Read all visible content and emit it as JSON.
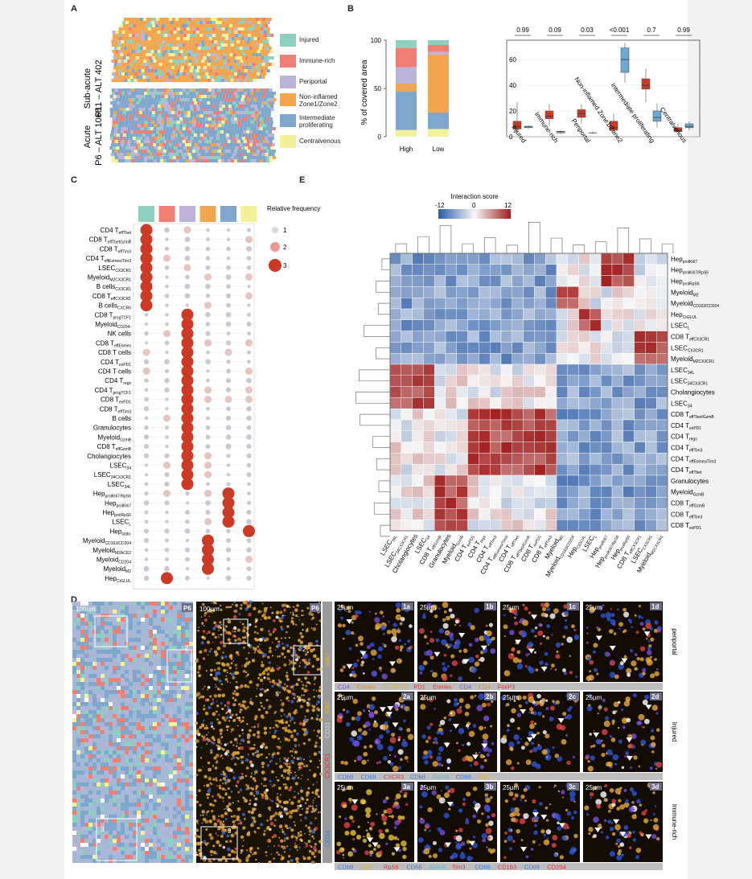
{
  "panels": {
    "A": "A",
    "B": "B",
    "C": "C",
    "D": "D",
    "E": "E"
  },
  "colors": {
    "injured": "#8ecfbf",
    "immune": "#ef7f74",
    "periportal": "#bcb4d8",
    "noninflamed": "#f3a64f",
    "intermediate": "#7fa7cc",
    "centralvenous": "#f3f19a",
    "red": "#cc3a26",
    "blue": "#6ea9d6"
  },
  "panelA": {
    "top_label_1": "Sub-acute",
    "top_label_2": "P11 – ALT 402",
    "bottom_label_1": "Acute",
    "bottom_label_2": "P6 – ALT 1068",
    "legend": [
      "Injured",
      "Immune-rich",
      "Periportal",
      "Non-inflamed Zone1/Zone2",
      "Intermediate proliferating",
      "Centralvenous"
    ]
  },
  "panelB": {
    "ylabel": "% of covered area",
    "yticks": [
      "0",
      "50",
      "100"
    ],
    "stack_categories": [
      "High",
      "Low"
    ],
    "box_yticks": [
      "0",
      "20",
      "40",
      "60"
    ],
    "pvalues": [
      "0.99",
      "0.09",
      "0.03",
      "<0.001",
      "0.7",
      "0.99"
    ],
    "box_categories": [
      "Injured",
      "Immune-rich",
      "Periportal",
      "Non-inflamed Zone1/Zone2",
      "Intermediate proliferating",
      "Centralvenous"
    ]
  },
  "chart_data": [
    {
      "type": "bar",
      "stacked": true,
      "categories": [
        "High",
        "Low"
      ],
      "ylabel": "% of covered area",
      "ylim": [
        0,
        100
      ],
      "series": [
        {
          "name": "Centralvenous",
          "values": [
            7,
            8
          ]
        },
        {
          "name": "Intermediate proliferating",
          "values": [
            40,
            17
          ]
        },
        {
          "name": "Non-inflamed Zone1/Zone2",
          "values": [
            8,
            60
          ]
        },
        {
          "name": "Periportal",
          "values": [
            17,
            3
          ]
        },
        {
          "name": "Immune-rich",
          "values": [
            20,
            7
          ]
        },
        {
          "name": "Injured",
          "values": [
            8,
            5
          ]
        }
      ]
    },
    {
      "type": "box",
      "categories": [
        "Injured",
        "Immune-rich",
        "Periportal",
        "Non-inflamed Zone1/Zone2",
        "Intermediate proliferating",
        "Centralvenous"
      ],
      "ylim": [
        0,
        75
      ],
      "pvalues": [
        "0.99",
        "0.09",
        "0.03",
        "<0.001",
        "0.7",
        "0.99"
      ],
      "series": [
        {
          "name": "High",
          "stats": [
            [
              3,
              6,
              8,
              12,
              27
            ],
            [
              8,
              14,
              16,
              20,
              25
            ],
            [
              10,
              15,
              18,
              21,
              25
            ],
            [
              3,
              5,
              7,
              12,
              18
            ],
            [
              27,
              37,
              40,
              45,
              53
            ],
            [
              3,
              4,
              5,
              7,
              10
            ]
          ]
        },
        {
          "name": "Low",
          "stats": [
            [
              6,
              7,
              8,
              8,
              9
            ],
            [
              2,
              3,
              4,
              4,
              5
            ],
            [
              2,
              3,
              3,
              3,
              4
            ],
            [
              42,
              50,
              60,
              69,
              73
            ],
            [
              7,
              12,
              15,
              20,
              26
            ],
            [
              5,
              7,
              8,
              10,
              12
            ]
          ]
        }
      ]
    },
    {
      "type": "dot",
      "title": "Relative frequency",
      "size_legend": [
        "1",
        "2",
        "3"
      ],
      "rows": [
        "CD4 T_effTbet",
        "CD8 T_effTbetGzmB",
        "CD8 T_effTim3",
        "CD4 T_effEomes/Tim3",
        "LSEC_CX3CR1",
        "Myeloid_M2CX3CR1",
        "B cells_CX3CR1",
        "CD8 T_effCX3CR1",
        "B cells_CXCR5",
        "CD8 T_progTCF1",
        "Myeloid_CD204-",
        "NK cells",
        "CD8 T_effEomes",
        "CD8 T cells",
        "CD4 T_exPD1",
        "CD4 T cells",
        "CD4 T_regs",
        "CD4 T_progTCF1",
        "CD8 T_exPD1",
        "CD8 T_effTim3",
        "B cells",
        "Granulocytes",
        "Myeloid_GzmB",
        "CD8 T_effGzmB",
        "Cholangiocytes",
        "LSEC_34",
        "LSEC_34CX3CR1",
        "LSEC_34L",
        "Hep_prolKI67/RpS6",
        "Hep_prolKi67",
        "Hep_prolRpS6",
        "LSEC_L",
        "Hep_static",
        "Myeloid_CD163/CD204",
        "Myeloid_M2ACE2",
        "Myeloid_CD204",
        "Myeloid_M2",
        "Hep_CtGLUL"
      ]
    },
    {
      "type": "heatmap",
      "title": "Interaction score",
      "scale": [
        "-12",
        "0",
        "12"
      ],
      "row_labels": [
        "Hep_prolKi67",
        "Hep_prolKi67/RpS6",
        "Hep_prolRpS6",
        "Myeloid_M2",
        "Myeloid_CD163/CD204",
        "Hep_CtGLUL",
        "LSEC_L",
        "CD8 T_effCX3CR1",
        "LSEC_CX3CR1",
        "Myeloid_M2CX3CR1",
        "LSEC_34L",
        "LSEC_34CX3CR1",
        "Cholangiocytes",
        "LSEC_34",
        "CD8 T_effTbet/GzmB",
        "CD4 T_exPD1",
        "CD4 T_regs",
        "CD4 T_effTim3",
        "CD4 T_effEomes/Tim3",
        "CD4 T_effTbet",
        "Granulocytes",
        "Myeloid_GzmB",
        "CD8 T_effGzmB",
        "CD8 T_effTim3",
        "CD8 T_exPD1"
      ],
      "col_labels": [
        "LSEC_34L",
        "LSEC_34CX3CR1",
        "Cholangiocytes",
        "LSEC_34",
        "CD8 T_effGzmB",
        "Granulocytes",
        "Myeloid_GzmB",
        "CD4 T_exPD1",
        "CD4 T_regs",
        "CD4 T_effTim3",
        "CD4 T_effEomes/Tim3",
        "CD4 T_effTbet",
        "CD8 T_effTbet/GzmB",
        "CD8 T_exPD1",
        "CD8 T_effTim3",
        "Myeloid_M2",
        "Myeloid_CD163/CD204",
        "Hep_CtGLUL",
        "LSEC_L",
        "Hep_prolKi67",
        "Hep_prolKi67/RpS6",
        "Hep_prolRpS6",
        "CD8 T_effCX3CR1",
        "LSEC_CX3CR1",
        "Myeloid_M2CX3CR1"
      ]
    }
  ],
  "panelD": {
    "scalebar_100": "100µm",
    "scalebar_25": "25µm",
    "p6": "P6",
    "region_labels": [
      "1",
      "2",
      "3"
    ],
    "tiles": [
      "1a",
      "1b",
      "1c",
      "1d",
      "2a",
      "2b",
      "2c",
      "2d",
      "3a",
      "3b",
      "3c",
      "3d"
    ],
    "row_titles": [
      "periportal",
      "Injured",
      "Immune-rich"
    ],
    "vertical_markers": [
      "CD34",
      "CX3CR1",
      "CD31",
      "Ki67",
      "Ki67"
    ],
    "captions": [
      [
        [
          "CD4",
          "#7a4be0"
        ],
        [
          "Eomes",
          "#e08a2e"
        ],
        [
          "CX3CR1",
          "#e0b42e"
        ],
        [
          "PD1",
          "#d33"
        ],
        [
          "Eomes",
          "#d33"
        ],
        [
          "CD4",
          "#7a4be0"
        ],
        [
          "CD4",
          "#d98f2e"
        ],
        [
          "FoxP3",
          "#d33"
        ]
      ],
      [
        [
          "CD68",
          "#3a7ad8"
        ],
        [
          "CD68",
          "#3a7ad8"
        ],
        [
          "CXCR3",
          "#d33"
        ],
        [
          "CD68",
          "#3a7ad8"
        ],
        [
          "GzmB",
          "#5ab0d8"
        ],
        [
          "CD68",
          "#3a7ad8"
        ],
        [
          "Ki67",
          "#e0b42e"
        ]
      ],
      [
        [
          "CD68",
          "#3a7ad8"
        ],
        [
          "Ki67",
          "#e0b42e"
        ],
        [
          "RpS6",
          "#d33"
        ],
        [
          "CD68",
          "#3a7ad8"
        ],
        [
          "GzmB",
          "#5ab0d8"
        ],
        [
          "Tim3",
          "#d33"
        ],
        [
          "CD68",
          "#3a7ad8"
        ],
        [
          "CD163",
          "#d33"
        ],
        [
          "CD68",
          "#3a7ad8"
        ],
        [
          "CD204",
          "#d33"
        ]
      ]
    ]
  }
}
